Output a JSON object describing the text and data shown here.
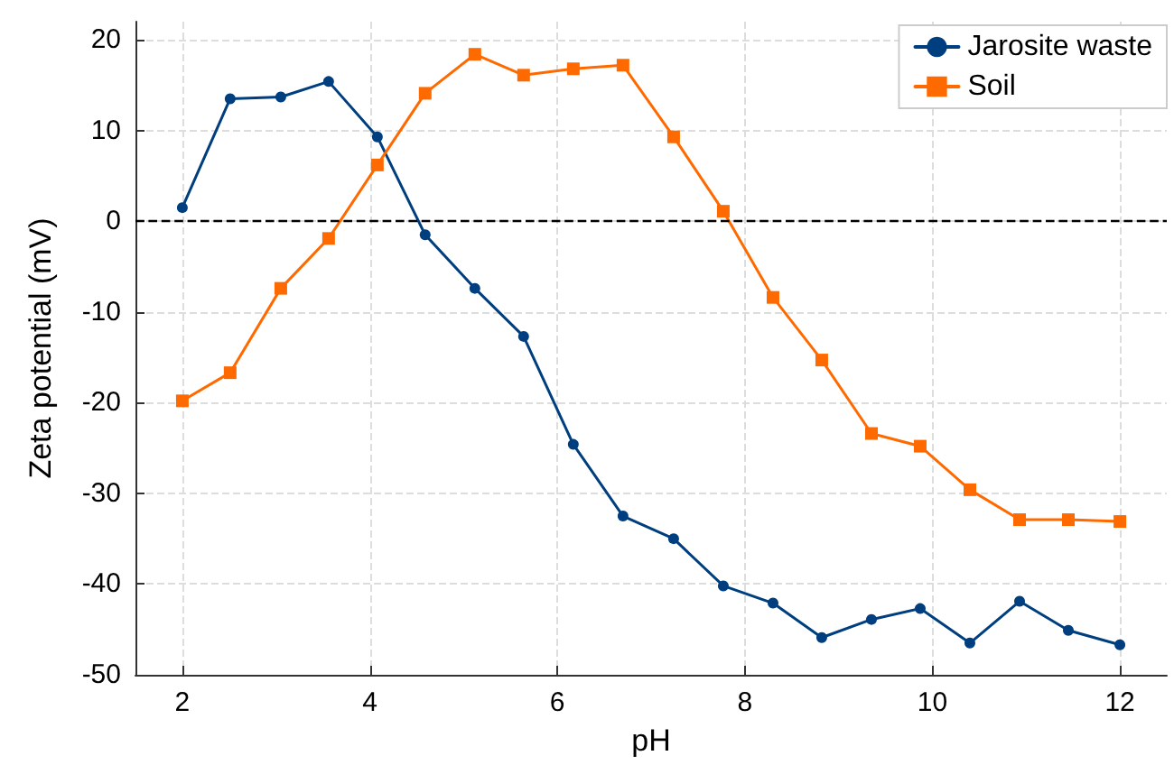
{
  "chart_data": {
    "type": "line",
    "xlabel": "pH",
    "ylabel": "Zeta potential (mV)",
    "xlim": [
      1.5,
      12.5
    ],
    "xticks": [
      2,
      4,
      6,
      8,
      10,
      12
    ],
    "ylim": [
      -50,
      22
    ],
    "yticks": [
      -50,
      -40,
      -30,
      -20,
      -10,
      0,
      10,
      20
    ],
    "grid": true,
    "legend": "top right",
    "line_style": "solid",
    "ref_lines": [
      {
        "axis": "y",
        "value": 0,
        "color": "#000000",
        "line_style": "dashed"
      }
    ],
    "series": [
      {
        "name": "Jarosite waste",
        "color": "#003f7f",
        "marker": "circle",
        "x": [
          2,
          2.51,
          3.05,
          3.56,
          4.08,
          4.59,
          5.12,
          5.64,
          6.17,
          6.7,
          7.24,
          7.77,
          8.3,
          8.82,
          9.35,
          9.87,
          10.4,
          10.93,
          11.45,
          12
        ],
        "values": [
          1.5,
          13.5,
          13.7,
          15.4,
          9.3,
          -1.5,
          -7.4,
          -12.7,
          -24.6,
          -32.5,
          -35,
          -40.2,
          -42.1,
          -45.9,
          -43.9,
          -42.7,
          -46.5,
          -41.9,
          -45.1,
          -46.7
        ]
      },
      {
        "name": "Soil",
        "color": "#ff6a00",
        "marker": "square",
        "x": [
          2,
          2.51,
          3.05,
          3.56,
          4.08,
          4.59,
          5.12,
          5.64,
          6.17,
          6.7,
          7.24,
          7.77,
          8.3,
          8.82,
          9.35,
          9.87,
          10.4,
          10.93,
          11.45,
          12
        ],
        "values": [
          -19.8,
          -16.7,
          -7.4,
          -1.9,
          6.2,
          14.1,
          18.4,
          16.1,
          16.8,
          17.2,
          9.3,
          1.1,
          -8.4,
          -15.3,
          -23.4,
          -24.8,
          -29.6,
          -32.9,
          -32.9,
          -33.1
        ]
      }
    ]
  }
}
